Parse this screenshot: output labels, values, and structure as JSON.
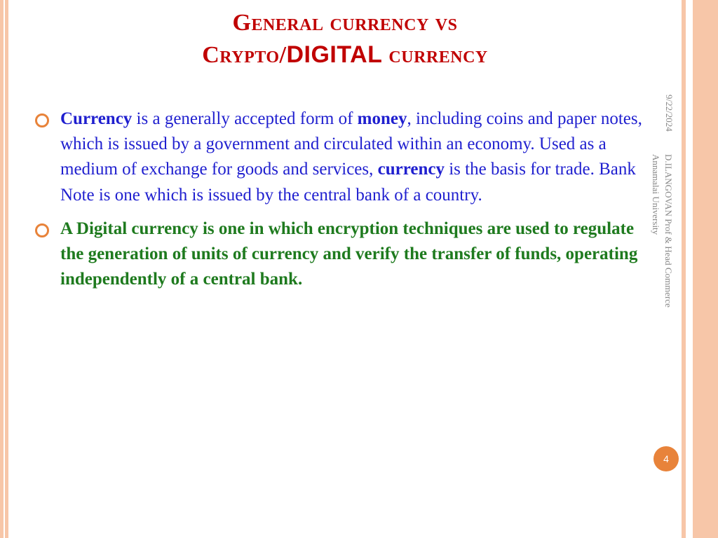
{
  "title": {
    "line1_pre": "General currency vs",
    "line2_pre": "Crypto/",
    "line2_digital": "DIGITAL",
    "line2_post": " currency"
  },
  "bullets": [
    {
      "color_class": "p1",
      "segments": [
        {
          "text": "Currency",
          "bold": true
        },
        {
          "text": " is a generally accepted form of ",
          "bold": false
        },
        {
          "text": "money",
          "bold": true
        },
        {
          "text": ", including coins and paper notes, which is issued by a government and circulated within an economy. Used as a medium of exchange for goods and services, ",
          "bold": false
        },
        {
          "text": "currency",
          "bold": true
        },
        {
          "text": " is the basis for trade. Bank Note is one which is issued by the central bank of a country.",
          "bold": false
        }
      ]
    },
    {
      "color_class": "p2",
      "segments": [
        {
          "text": "A Digital currency is one in which encryption techniques are used to regulate the generation of units of currency and verify the transfer of funds, operating independently of a central bank",
          "bold": true
        },
        {
          "text": ".",
          "bold": false
        }
      ]
    }
  ],
  "sidebar": {
    "date": "9/22/2024",
    "author_line1": "D.ILANGOVAN Prof & Head Commerce",
    "author_line2": "Annamalai University"
  },
  "page_number": "4",
  "colors": {
    "title": "#c00000",
    "body1": "#1f1fcf",
    "body2": "#1e7a1e",
    "accent": "#e8833a",
    "border": "#f7c6a8",
    "sidebar_text": "#888888"
  }
}
